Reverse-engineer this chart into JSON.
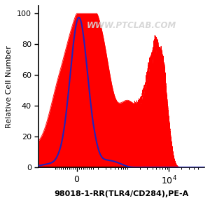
{
  "title": "",
  "xlabel": "98018-1-RR(TLR4/CD284),PE-A",
  "ylabel": "Relative Cell Number",
  "watermark": "WWW.PTCLAB.COM",
  "ylim": [
    0,
    105
  ],
  "background_color": "#ffffff",
  "red_color": "#ff0000",
  "blue_color": "#2222bb",
  "yticks": [
    0,
    20,
    40,
    60,
    80,
    100
  ],
  "figsize": [
    3.0,
    2.9
  ]
}
